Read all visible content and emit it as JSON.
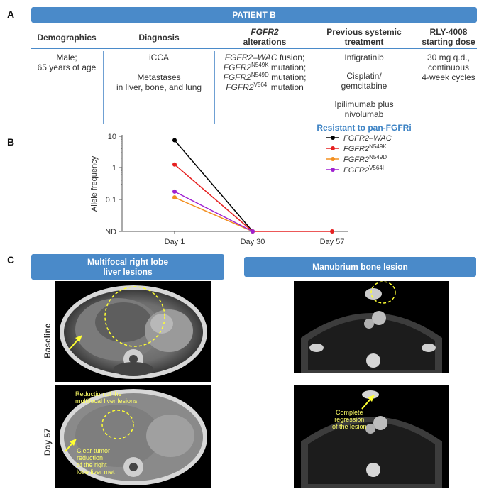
{
  "panel_a": {
    "letter": "A",
    "banner": "PATIENT B",
    "headers": {
      "demographics": "Demographics",
      "diagnosis": "Diagnosis",
      "fgfr2_gene": "FGFR2",
      "fgfr2_rest": "alterations",
      "previous_1": "Previous systemic",
      "previous_2": "treatment",
      "rly_1": "RLY-4008",
      "rly_2": "starting dose"
    },
    "demographics": {
      "line1": "Male;",
      "line2": "65 years of age"
    },
    "diagnosis": {
      "line1": "iCCA",
      "line2": "Metastases",
      "line3": "in liver, bone, and lung"
    },
    "alterations": {
      "a1_gene": "FGFR2–WAC",
      "a1_rest": " fusion;",
      "a2_gene": "FGFR2",
      "a2_sup": "N549K",
      "a2_rest": " mutation;",
      "a3_gene": "FGFR2",
      "a3_sup": "N549D",
      "a3_rest": " mutation;",
      "a4_gene": "FGFR2",
      "a4_sup": "V564I",
      "a4_rest": " mutation"
    },
    "previous": {
      "t1": "Infigratinib",
      "t2a": "Cisplatin/",
      "t2b": "gemcitabine",
      "t3a": "Ipilimumab plus",
      "t3b": "nivolumab",
      "resistant": "Resistant to pan-FGFRi"
    },
    "dose": {
      "line1": "30 mg q.d.,",
      "line2": "continuous",
      "line3": "4-week cycles"
    }
  },
  "panel_b": {
    "letter": "B",
    "chart_data": {
      "type": "line",
      "ylabel": "Allele frequency",
      "yscale": "log",
      "y_ticks": [
        "10",
        "1",
        "0.1",
        "ND"
      ],
      "categories": [
        "Day 1",
        "Day 30",
        "Day 57"
      ],
      "legend_position": "top-right",
      "series": [
        {
          "name_gene": "FGFR2–WAC",
          "name_sup": "",
          "color": "#000000",
          "values": [
            7.5,
            "ND",
            null
          ]
        },
        {
          "name_gene": "FGFR2",
          "name_sup": "N549K",
          "color": "#e62020",
          "values": [
            1.25,
            "ND",
            "ND"
          ]
        },
        {
          "name_gene": "FGFR2",
          "name_sup": "N549D",
          "color": "#f39020",
          "values": [
            0.11,
            "ND",
            null
          ]
        },
        {
          "name_gene": "FGFR2",
          "name_sup": "V564I",
          "color": "#a020d0",
          "values": [
            0.17,
            "ND",
            null
          ]
        }
      ]
    }
  },
  "panel_c": {
    "letter": "C",
    "left_title_1": "Multifocal right lobe",
    "left_title_2": "liver lesions",
    "right_title": "Manubrium bone lesion",
    "row1": "Baseline",
    "row2": "Day 57",
    "anno_liver_1": "Reduction of the",
    "anno_liver_2": "multifocal liver lesions",
    "anno_tumor_1": "Clear tumor",
    "anno_tumor_2": "reduction",
    "anno_tumor_3": "of the right",
    "anno_tumor_4": "lobe liver met",
    "anno_bone_1": "Complete",
    "anno_bone_2": "regression",
    "anno_bone_3": "of the lesion"
  }
}
